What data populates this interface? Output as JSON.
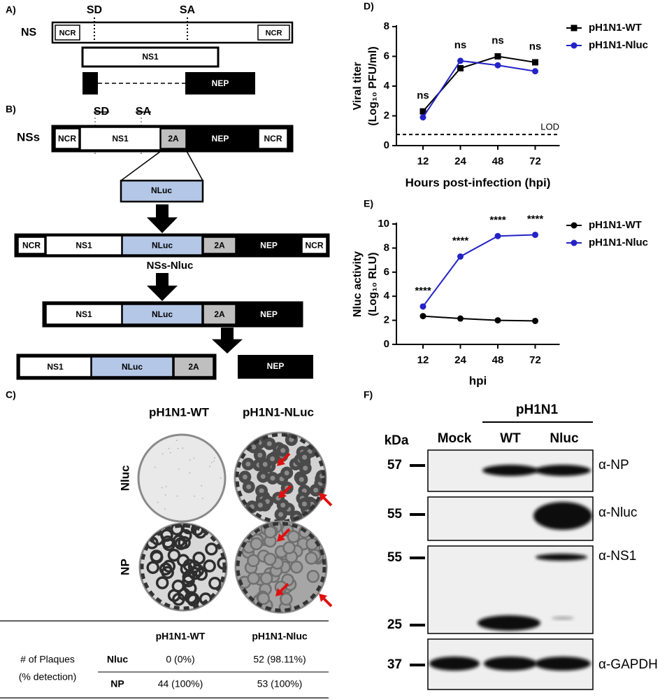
{
  "panel_a": {
    "panel_label": "A)",
    "segment": "NS",
    "sites": [
      "SD",
      "SA"
    ],
    "ncr": [
      "NCR",
      "NCR"
    ],
    "ns1": "NS1",
    "nep": "NEP"
  },
  "panel_b": {
    "panel_label": "B)",
    "sites": [
      "SD",
      "SA"
    ],
    "nss": {
      "name": "NSs",
      "boxes": [
        "NCR",
        "NS1",
        "2A",
        "NEP",
        "NCR"
      ]
    },
    "insert": "NLuc",
    "nss_nluc": {
      "name": "NSs-Nluc",
      "boxes": [
        "NCR",
        "NS1",
        "NLuc",
        "2A",
        "NEP",
        "NCR"
      ]
    },
    "precursor": [
      "NS1",
      "NLuc",
      "2A",
      "NEP"
    ],
    "products": [
      "NS1",
      "NLuc",
      "2A",
      "NEP"
    ]
  },
  "panel_c": {
    "panel_label": "C)",
    "columns": [
      "pH1N1-WT",
      "pH1N1-NLuc"
    ],
    "rows": [
      "Nluc",
      "NP"
    ],
    "table": {
      "columns": [
        "pH1N1-WT",
        "pH1N1-Nluc"
      ],
      "row_group": [
        "# of Plaques",
        "(% detection)"
      ],
      "rows": [
        [
          "Nluc",
          "0 (0%)",
          "52 (98.11%)"
        ],
        [
          "NP",
          "44 (100%)",
          "53 (100%)"
        ]
      ]
    }
  },
  "chart_data": [
    {
      "type": "line",
      "panel_label": "D)",
      "xlabel": "Hours post-infection (hpi)",
      "ylabel": [
        "Viral titer",
        "(Log₁₀ PFU/ml)"
      ],
      "categories": [
        12,
        24,
        48,
        72
      ],
      "series": [
        {
          "name": "pH1N1-WT",
          "color": "#000000",
          "marker": "square",
          "values": [
            2.3,
            5.2,
            6.0,
            5.6
          ]
        },
        {
          "name": "pH1N1-Nluc",
          "color": "#2323c8",
          "marker": "circle",
          "values": [
            1.9,
            5.7,
            5.4,
            5.0
          ]
        }
      ],
      "ylim": [
        0,
        8
      ],
      "yticks": [
        0,
        2,
        4,
        6,
        8
      ],
      "reference_line": {
        "label": "LOD",
        "value": 0.75
      },
      "annotations": [
        "ns",
        "ns",
        "ns",
        "ns"
      ],
      "legend": "right"
    },
    {
      "type": "line",
      "panel_label": "E)",
      "xlabel": "hpi",
      "ylabel": [
        "Nluc activity",
        "(Log₁₀ RLU)"
      ],
      "categories": [
        12,
        24,
        48,
        72
      ],
      "series": [
        {
          "name": "pH1N1-WT",
          "color": "#000000",
          "marker": "circle",
          "values": [
            2.35,
            2.15,
            2.0,
            1.95
          ]
        },
        {
          "name": "pH1N1-Nluc",
          "color": "#2323c8",
          "marker": "circle",
          "values": [
            3.15,
            7.3,
            9.0,
            9.1
          ]
        }
      ],
      "ylim": [
        0,
        10
      ],
      "yticks": [
        0,
        2,
        4,
        6,
        8,
        10
      ],
      "annotations": [
        "****",
        "****",
        "****",
        "****"
      ],
      "legend": "right"
    }
  ],
  "panel_f": {
    "panel_label": "F)",
    "group": "pH1N1",
    "unit": "kDa",
    "lanes": [
      "Mock",
      "WT",
      "Nluc"
    ],
    "markers": [
      "57",
      "55",
      "55",
      "25",
      "37"
    ],
    "antibodies": [
      "α-NP",
      "α-Nluc",
      "α-NS1",
      "α-GAPDH"
    ]
  }
}
